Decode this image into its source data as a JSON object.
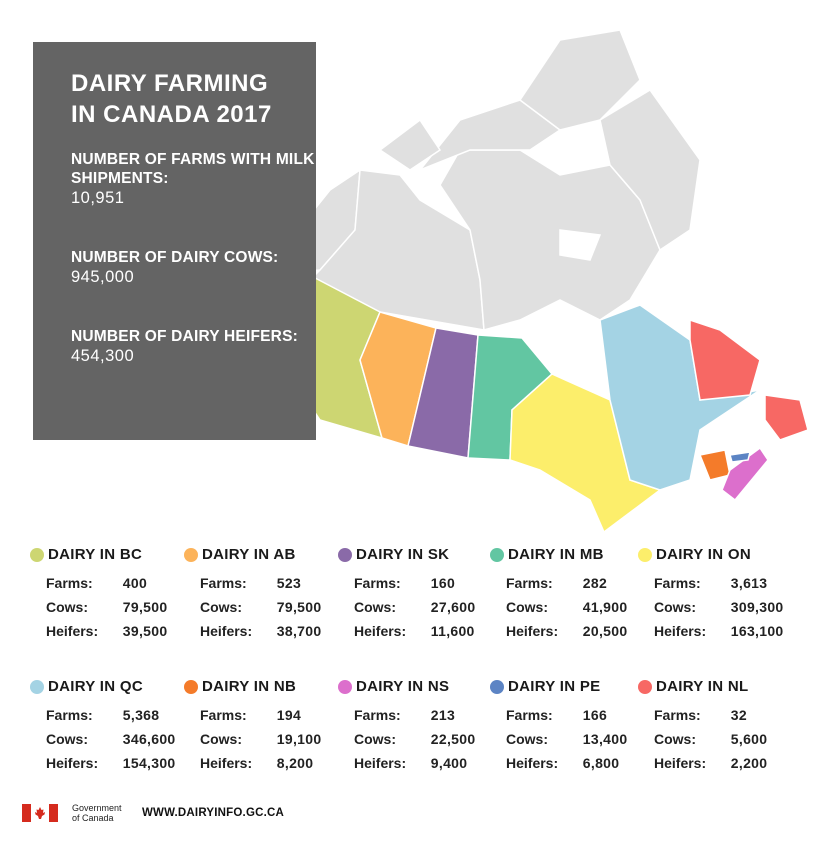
{
  "header": {
    "title": "DAIRY FARMING IN CANADA 2017"
  },
  "summary": [
    {
      "label": "NUMBER OF FARMS WITH MILK SHIPMENTS:",
      "value": "10,951"
    },
    {
      "label": "NUMBER OF DAIRY COWS:",
      "value": "945,000"
    },
    {
      "label": "NUMBER OF DAIRY HEIFERS:",
      "value": "454,300"
    }
  ],
  "row_labels": {
    "farms": "Farms:",
    "cows": "Cows:",
    "heifers": "Heifers:"
  },
  "provinces": [
    {
      "title": "DAIRY IN BC",
      "color": "#cdd672",
      "farms": "400",
      "cows": "79,500",
      "heifers": "39,500"
    },
    {
      "title": "DAIRY IN AB",
      "color": "#fcb35a",
      "farms": "523",
      "cows": "79,500",
      "heifers": "38,700"
    },
    {
      "title": "DAIRY IN SK",
      "color": "#8a6aa8",
      "farms": "160",
      "cows": "27,600",
      "heifers": "11,600"
    },
    {
      "title": "DAIRY IN MB",
      "color": "#62c6a2",
      "farms": "282",
      "cows": "41,900",
      "heifers": "20,500"
    },
    {
      "title": "DAIRY IN ON",
      "color": "#fcee6b",
      "farms": "3,613",
      "cows": "309,300",
      "heifers": "163,100"
    },
    {
      "title": "DAIRY IN QC",
      "color": "#a4d3e4",
      "farms": "5,368",
      "cows": "346,600",
      "heifers": "154,300"
    },
    {
      "title": "DAIRY IN NB",
      "color": "#f47b2a",
      "farms": "194",
      "cows": "19,100",
      "heifers": "8,200"
    },
    {
      "title": "DAIRY IN NS",
      "color": "#dc6fcc",
      "farms": "213",
      "cows": "22,500",
      "heifers": "9,400"
    },
    {
      "title": "DAIRY IN PE",
      "color": "#5c84c4",
      "farms": "166",
      "cows": "13,400",
      "heifers": "6,800"
    },
    {
      "title": "DAIRY IN NL",
      "color": "#f76864",
      "farms": "32",
      "cows": "5,600",
      "heifers": "2,200"
    }
  ],
  "map_colors": {
    "territories": "#e0e0e0",
    "summary_panel": "#646464"
  },
  "footer": {
    "gov_line1": "Government",
    "gov_line2": "of Canada",
    "url": "WWW.DAIRYINFO.GC.CA",
    "flag_icon": "canada-flag-icon"
  }
}
